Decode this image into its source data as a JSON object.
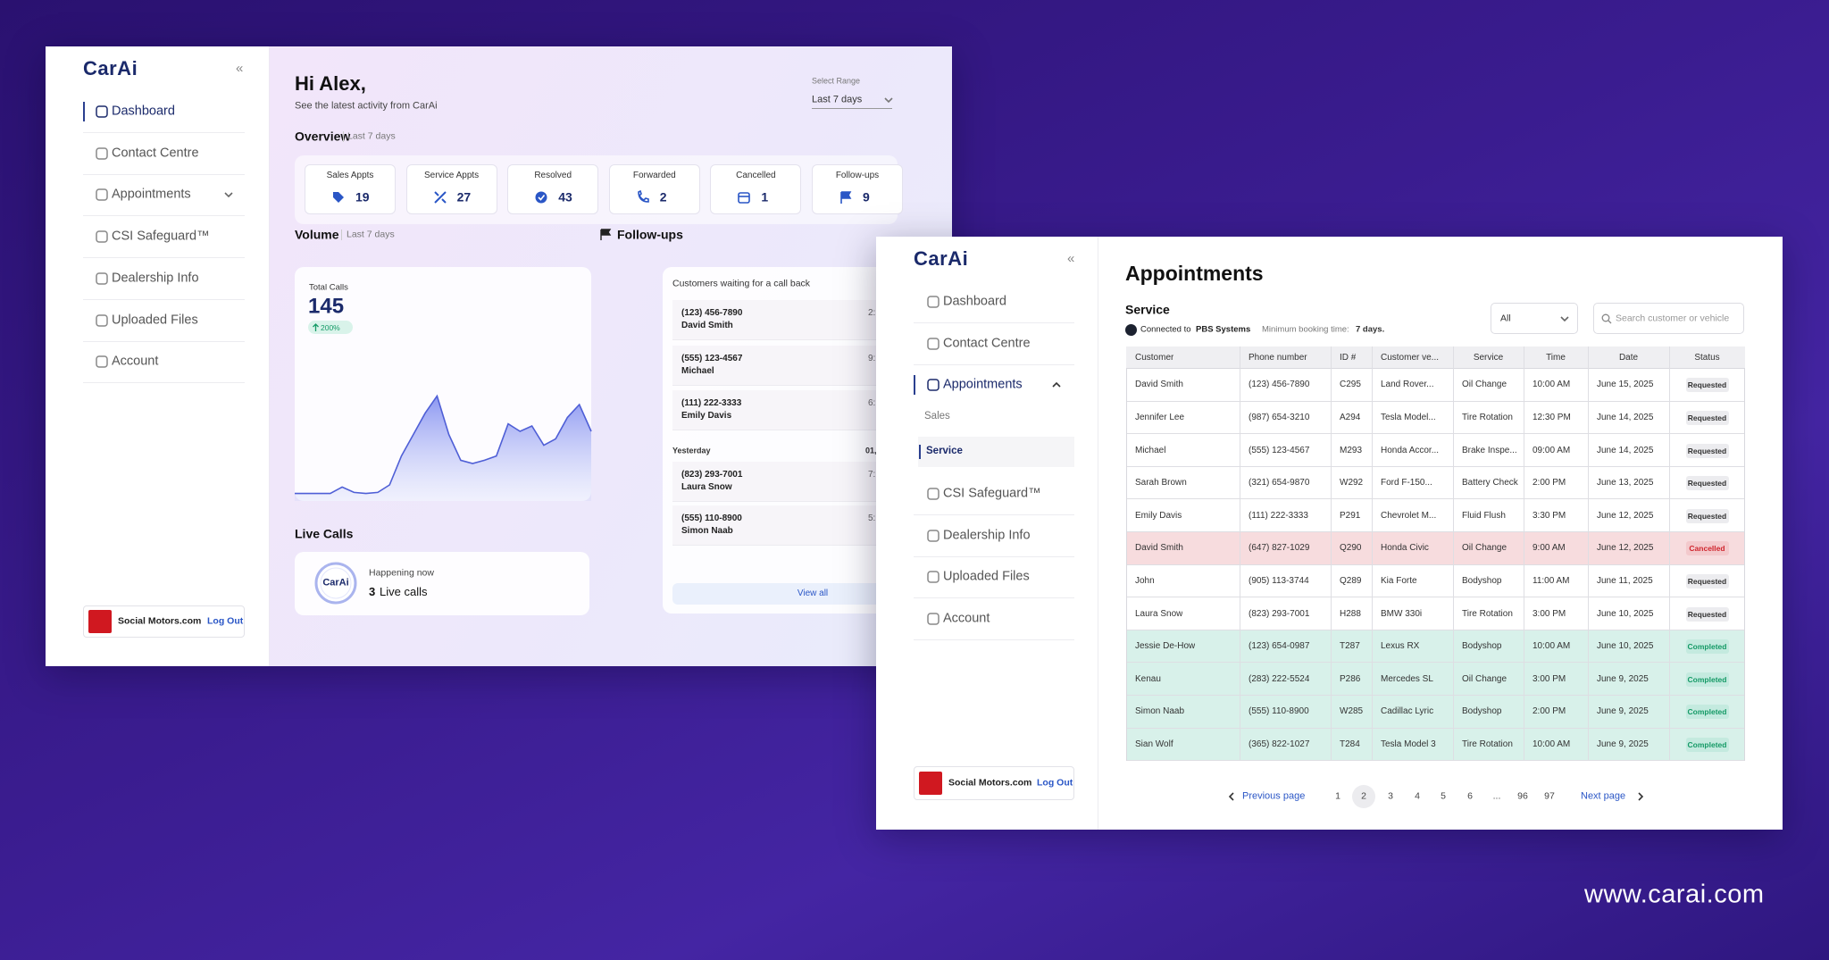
{
  "website": "www.carai.com",
  "dashboard": {
    "logo": "CarAi",
    "collapse": "«",
    "nav": [
      "Dashboard",
      "Contact Centre",
      "Appointments",
      "CSI Safeguard™",
      "Dealership Info",
      "Uploaded Files",
      "Account"
    ],
    "dealer": "Social Motors.com",
    "logout": "Log Out",
    "greeting": "Hi Alex,",
    "subtitle": "See the latest activity from CarAi",
    "range_label": "Select Range",
    "range_value": "Last 7 days",
    "overview": "Overview",
    "overview_period": "Last 7 days",
    "stats": [
      {
        "label": "Sales Appts",
        "value": 19
      },
      {
        "label": "Service Appts",
        "value": 27
      },
      {
        "label": "Resolved",
        "value": 43
      },
      {
        "label": "Forwarded",
        "value": 2
      },
      {
        "label": "Cancelled",
        "value": 1
      },
      {
        "label": "Follow-ups",
        "value": 9
      }
    ],
    "volume": {
      "title": "Volume",
      "period": "Last 7 days",
      "total_label": "Total Calls",
      "total": 145,
      "change": "200%",
      "values": [
        7,
        7,
        7,
        7,
        13,
        8,
        7,
        8,
        15,
        42,
        62,
        82,
        98,
        62,
        38,
        35,
        38,
        42,
        72,
        65,
        70,
        52,
        58,
        78,
        90,
        65
      ]
    },
    "live_calls": {
      "title": "Live Calls",
      "logo": "CarAi",
      "status": "Happening now",
      "count": 3,
      "unit": "Live calls"
    },
    "followups": {
      "title": "Follow-ups",
      "subtitle": "Customers waiting for a call back",
      "items": [
        {
          "phone": "(123) 456-7890",
          "name": "David Smith",
          "time": "2:"
        },
        {
          "phone": "(555) 123-4567",
          "name": "Michael",
          "time": "9:"
        },
        {
          "phone": "(111) 222-3333",
          "name": "Emily Davis",
          "time": "6:"
        }
      ],
      "group": "Yesterday",
      "group_date": "01,",
      "items_yesterday": [
        {
          "phone": "(823) 293-7001",
          "name": "Laura Snow",
          "time": "7:"
        },
        {
          "phone": "(555) 110-8900",
          "name": "Simon Naab",
          "time": "5:"
        }
      ],
      "view_all": "View all"
    }
  },
  "appointments": {
    "logo": "CarAi",
    "collapse": "«",
    "nav": [
      {
        "label": "Dashboard"
      },
      {
        "label": "Contact Centre"
      },
      {
        "label": "Appointments",
        "sub": [
          "Sales",
          "Service"
        ]
      },
      {
        "label": "CSI Safeguard™"
      },
      {
        "label": "Dealership Info"
      },
      {
        "label": "Uploaded Files"
      },
      {
        "label": "Account"
      }
    ],
    "dealer": "Social Motors.com",
    "logout": "Log Out",
    "title": "Appointments",
    "section": "Service",
    "connected_prefix": "Connected to",
    "connected_system": "PBS Systems",
    "min_booking_label": "Minimum booking time:",
    "min_booking_value": "7 days.",
    "filter": "All",
    "search_placeholder": "Search customer or vehicle",
    "columns": [
      "Customer",
      "Phone number",
      "ID #",
      "Customer ve...",
      "Service",
      "Time",
      "Date",
      "Status"
    ],
    "rows": [
      {
        "cells": [
          "David Smith",
          "(123) 456-7890",
          "C295",
          "Land Rover...",
          "Oil Change",
          "10:00 AM",
          "June 15, 2025",
          "Requested"
        ],
        "bg": "#ffffff",
        "badge": "#ececef",
        "status_color": "#333333"
      },
      {
        "cells": [
          "Jennifer Lee",
          "(987) 654-3210",
          "A294",
          "Tesla Model...",
          "Tire Rotation",
          "12:30 PM",
          "June 14, 2025",
          "Requested"
        ],
        "bg": "#ffffff",
        "badge": "#ececef",
        "status_color": "#333333"
      },
      {
        "cells": [
          "Michael",
          "(555) 123-4567",
          "M293",
          "Honda Accor...",
          "Brake Inspe...",
          "09:00 AM",
          "June 14, 2025",
          "Requested"
        ],
        "bg": "#ffffff",
        "badge": "#ececef",
        "status_color": "#333333"
      },
      {
        "cells": [
          "Sarah Brown",
          "(321) 654-9870",
          "W292",
          "Ford F-150...",
          "Battery Check",
          "2:00 PM",
          "June 13, 2025",
          "Requested"
        ],
        "bg": "#ffffff",
        "badge": "#ececef",
        "status_color": "#333333"
      },
      {
        "cells": [
          "Emily Davis",
          "(111) 222-3333",
          "P291",
          "Chevrolet M...",
          "Fluid Flush",
          "3:30 PM",
          "June 12, 2025",
          "Requested"
        ],
        "bg": "#ffffff",
        "badge": "#ececef",
        "status_color": "#333333"
      },
      {
        "cells": [
          "David Smith",
          "(647) 827-1029",
          "Q290",
          "Honda Civic",
          "Oil Change",
          "9:00 AM",
          "June 12, 2025",
          "Cancelled"
        ],
        "bg": "#f7dcde",
        "badge": "#f3c9cc",
        "status_color": "#d0262e"
      },
      {
        "cells": [
          "John",
          "(905) 113-3744",
          "Q289",
          "Kia Forte",
          "Bodyshop",
          "11:00 AM",
          "June 11, 2025",
          "Requested"
        ],
        "bg": "#ffffff",
        "badge": "#ececef",
        "status_color": "#333333"
      },
      {
        "cells": [
          "Laura Snow",
          "(823) 293-7001",
          "H288",
          "BMW 330i",
          "Tire Rotation",
          "3:00 PM",
          "June 10, 2025",
          "Requested"
        ],
        "bg": "#ffffff",
        "badge": "#ececef",
        "status_color": "#333333"
      },
      {
        "cells": [
          "Jessie De-How",
          "(123) 654-0987",
          "T287",
          "Lexus RX",
          "Bodyshop",
          "10:00 AM",
          "June 10, 2025",
          "Completed"
        ],
        "bg": "#d8f1ea",
        "badge": "#c4eadf",
        "status_color": "#159a66"
      },
      {
        "cells": [
          "Kenau",
          "(283) 222-5524",
          "P286",
          "Mercedes SL",
          "Oil Change",
          "3:00 PM",
          "June 9, 2025",
          "Completed"
        ],
        "bg": "#d8f1ea",
        "badge": "#c4eadf",
        "status_color": "#159a66"
      },
      {
        "cells": [
          "Simon Naab",
          "(555) 110-8900",
          "W285",
          "Cadillac Lyric",
          "Bodyshop",
          "2:00 PM",
          "June 9, 2025",
          "Completed"
        ],
        "bg": "#d8f1ea",
        "badge": "#c4eadf",
        "status_color": "#159a66"
      },
      {
        "cells": [
          "Sian Wolf",
          "(365) 822-1027",
          "T284",
          "Tesla Model 3",
          "Tire Rotation",
          "10:00 AM",
          "June 9, 2025",
          "Completed"
        ],
        "bg": "#d8f1ea",
        "badge": "#c4eadf",
        "status_color": "#159a66"
      }
    ],
    "previous": "Previous page",
    "next": "Next page",
    "pages": [
      1,
      2,
      3,
      4,
      5,
      6,
      "...",
      96,
      97
    ],
    "current_page": 2
  }
}
